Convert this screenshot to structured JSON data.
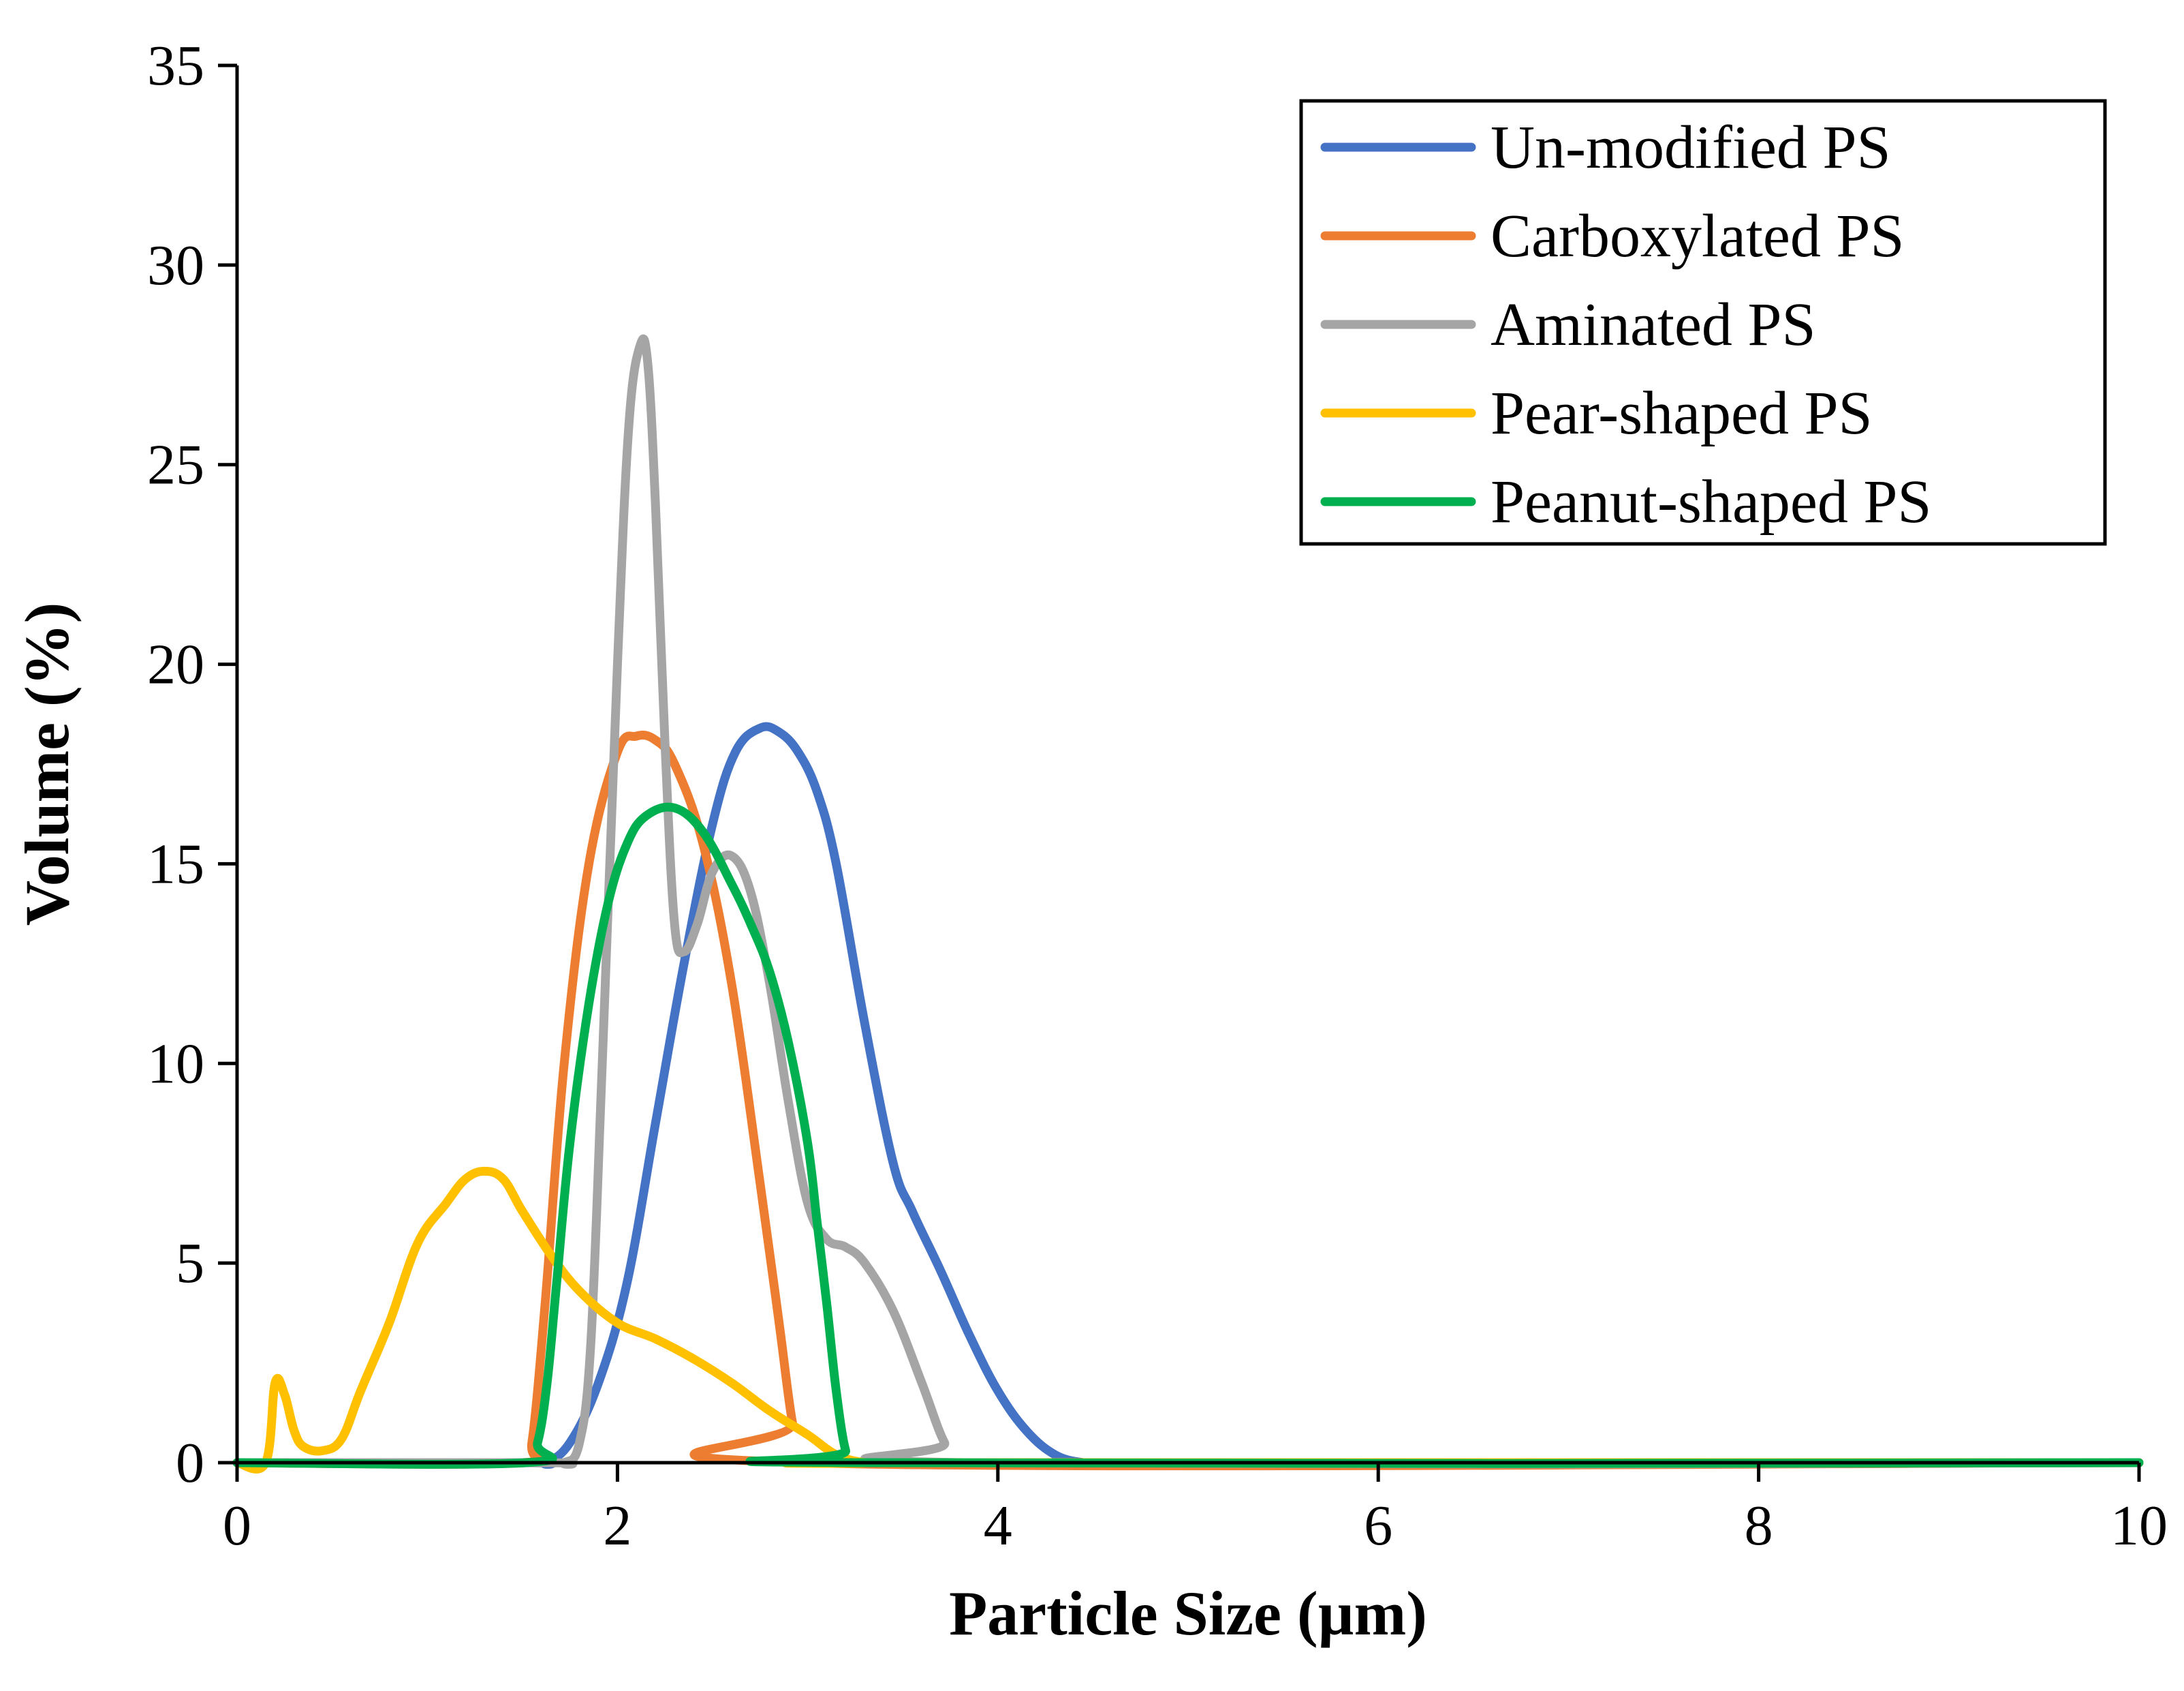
{
  "chart_data": {
    "type": "line",
    "title": "",
    "xlabel": "Particle Size (µm)",
    "ylabel": "Volume (%)",
    "xlim": [
      0,
      10
    ],
    "ylim": [
      0,
      35
    ],
    "xticks": [
      0,
      2,
      4,
      6,
      8,
      10
    ],
    "yticks": [
      0,
      5,
      10,
      15,
      20,
      25,
      30,
      35
    ],
    "grid": false,
    "legend_position": "top-right",
    "series": [
      {
        "name": "Un-modified PS",
        "color": "#4472C4",
        "x": [
          0,
          1.5,
          1.62,
          1.75,
          1.9,
          2.05,
          2.2,
          2.35,
          2.5,
          2.62,
          2.75,
          2.85,
          2.95,
          3.05,
          3.15,
          3.3,
          3.45,
          3.55,
          3.7,
          3.85,
          4.0,
          4.15,
          4.3,
          4.45,
          4.6,
          10
        ],
        "y": [
          0,
          0,
          0,
          0.5,
          2,
          4.5,
          8.5,
          12.5,
          16,
          17.8,
          18.4,
          18.3,
          17.8,
          16.8,
          15,
          11,
          7.5,
          6.3,
          4.8,
          3.2,
          1.8,
          0.8,
          0.2,
          0,
          0,
          0
        ]
      },
      {
        "name": "Carboxylated PS",
        "color": "#ED7D31",
        "x": [
          0,
          1.5,
          1.55,
          1.62,
          1.72,
          1.85,
          2.0,
          2.1,
          2.2,
          2.3,
          2.45,
          2.6,
          2.75,
          2.85,
          2.92,
          2.98,
          10
        ],
        "y": [
          0,
          0,
          0.5,
          4,
          10,
          15,
          17.8,
          18.2,
          18.1,
          17.5,
          15.5,
          12,
          7,
          3.5,
          1,
          0,
          0
        ]
      },
      {
        "name": "Aminated PS",
        "color": "#A5A5A5",
        "x": [
          0,
          1.6,
          1.72,
          1.8,
          1.86,
          1.92,
          2.0,
          2.06,
          2.12,
          2.16,
          2.2,
          2.25,
          2.3,
          2.35,
          2.42,
          2.5,
          2.6,
          2.7,
          2.8,
          2.9,
          3.0,
          3.1,
          3.2,
          3.3,
          3.45,
          3.6,
          3.72,
          3.82,
          10
        ],
        "y": [
          0,
          0,
          0,
          0.5,
          3,
          10,
          20,
          26,
          28,
          27.5,
          24,
          18,
          13.5,
          12.8,
          13.5,
          14.8,
          15.2,
          14.3,
          12,
          9,
          6.5,
          5.6,
          5.4,
          5,
          3.8,
          2,
          0.5,
          0,
          0
        ]
      },
      {
        "name": "Pear-shaped PS",
        "color": "#FFC000",
        "x": [
          0,
          0.15,
          0.2,
          0.25,
          0.3,
          0.35,
          0.45,
          0.55,
          0.65,
          0.8,
          0.95,
          1.1,
          1.2,
          1.3,
          1.4,
          1.5,
          1.65,
          1.8,
          2.0,
          2.2,
          2.4,
          2.6,
          2.8,
          3.0,
          3.15,
          3.3,
          3.45,
          10
        ],
        "y": [
          0,
          0,
          2,
          1.7,
          0.8,
          0.4,
          0.3,
          0.6,
          1.8,
          3.5,
          5.5,
          6.5,
          7.1,
          7.3,
          7.1,
          6.3,
          5.2,
          4.3,
          3.5,
          3.1,
          2.6,
          2.0,
          1.3,
          0.7,
          0.2,
          0,
          0,
          0
        ]
      },
      {
        "name": "Peanut-shaped PS",
        "color": "#00B050",
        "x": [
          0,
          1.52,
          1.58,
          1.63,
          1.68,
          1.75,
          1.85,
          1.95,
          2.05,
          2.15,
          2.3,
          2.45,
          2.6,
          2.7,
          2.8,
          2.9,
          3.0,
          3.05,
          3.1,
          3.15,
          3.2,
          3.25,
          10
        ],
        "y": [
          0,
          0,
          0.5,
          2,
          4.5,
          8,
          11.5,
          14,
          15.5,
          16.2,
          16.4,
          15.8,
          14.5,
          13.5,
          12.3,
          10.5,
          8,
          6,
          4,
          1.8,
          0.3,
          0,
          0
        ]
      }
    ]
  }
}
